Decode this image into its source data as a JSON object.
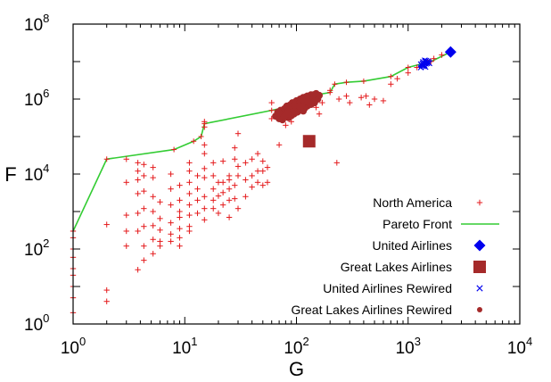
{
  "chart_data": {
    "type": "scatter",
    "xlabel": "G",
    "ylabel": "F",
    "xscale": "log",
    "yscale": "log",
    "xlim": [
      1,
      10000
    ],
    "ylim": [
      1,
      100000000
    ],
    "x_ticks": [
      {
        "base": "10",
        "exp": "0",
        "value": 1
      },
      {
        "base": "10",
        "exp": "1",
        "value": 10
      },
      {
        "base": "10",
        "exp": "2",
        "value": 100
      },
      {
        "base": "10",
        "exp": "3",
        "value": 1000
      },
      {
        "base": "10",
        "exp": "4",
        "value": 10000
      }
    ],
    "y_ticks": [
      {
        "base": "10",
        "exp": "0",
        "value": 1
      },
      {
        "base": "10",
        "exp": "2",
        "value": 100
      },
      {
        "base": "10",
        "exp": "4",
        "value": 10000
      },
      {
        "base": "10",
        "exp": "6",
        "value": 1000000
      },
      {
        "base": "10",
        "exp": "8",
        "value": 100000000
      }
    ],
    "grid": false,
    "legend_position": "bottom-right",
    "series": [
      {
        "name": "North America",
        "marker": "plus",
        "color": "#e41a1c",
        "points": [
          [
            1,
            300
          ],
          [
            1,
            200
          ],
          [
            1,
            100
          ],
          [
            1,
            60
          ],
          [
            1,
            30
          ],
          [
            1,
            20
          ],
          [
            1,
            10
          ],
          [
            1,
            5
          ],
          [
            1,
            2
          ],
          [
            2,
            450
          ],
          [
            2,
            8
          ],
          [
            2,
            4
          ],
          [
            3,
            25000
          ],
          [
            3,
            6000
          ],
          [
            3,
            800
          ],
          [
            3,
            300
          ],
          [
            3,
            120
          ],
          [
            3.8,
            20000
          ],
          [
            3.8,
            12000
          ],
          [
            3.8,
            7000
          ],
          [
            3.8,
            3000
          ],
          [
            3.8,
            900
          ],
          [
            3.8,
            300
          ],
          [
            3.8,
            28
          ],
          [
            4.3,
            18000
          ],
          [
            4.3,
            9000
          ],
          [
            4.3,
            3500
          ],
          [
            4.3,
            1200
          ],
          [
            4.3,
            400
          ],
          [
            4.3,
            120
          ],
          [
            4.3,
            50
          ],
          [
            5.2,
            15000
          ],
          [
            5.2,
            8000
          ],
          [
            5.2,
            2500
          ],
          [
            5.2,
            1000
          ],
          [
            5.2,
            420
          ],
          [
            5.2,
            180
          ],
          [
            5.2,
            75
          ],
          [
            6,
            1800
          ],
          [
            6,
            650
          ],
          [
            6,
            320
          ],
          [
            6,
            160
          ],
          [
            6,
            120
          ],
          [
            7.5,
            10000
          ],
          [
            7.5,
            4000
          ],
          [
            7.5,
            1500
          ],
          [
            7.5,
            500
          ],
          [
            7.5,
            250
          ],
          [
            7.5,
            160
          ],
          [
            9,
            5000
          ],
          [
            9,
            2000
          ],
          [
            9,
            1000
          ],
          [
            9,
            700
          ],
          [
            9,
            350
          ],
          [
            9,
            200
          ],
          [
            9,
            120
          ],
          [
            11,
            20000
          ],
          [
            11,
            12000
          ],
          [
            11,
            6000
          ],
          [
            11,
            3000
          ],
          [
            11,
            1500
          ],
          [
            11,
            800
          ],
          [
            11,
            400
          ],
          [
            11,
            300
          ],
          [
            13,
            9000
          ],
          [
            13,
            4000
          ],
          [
            13,
            2000
          ],
          [
            13,
            900
          ],
          [
            15,
            250000
          ],
          [
            15,
            180000
          ],
          [
            15,
            60000
          ],
          [
            15,
            35000
          ],
          [
            15,
            14000
          ],
          [
            15,
            8000
          ],
          [
            15,
            2500
          ],
          [
            15,
            1200
          ],
          [
            15,
            600
          ],
          [
            18,
            20000
          ],
          [
            18,
            9000
          ],
          [
            18,
            4000
          ],
          [
            18,
            2000
          ],
          [
            18,
            1200
          ],
          [
            20,
            6000
          ],
          [
            20,
            2600
          ],
          [
            20,
            900
          ],
          [
            22,
            22000
          ],
          [
            22,
            6000
          ],
          [
            22,
            3200
          ],
          [
            22,
            1500
          ],
          [
            25,
            9000
          ],
          [
            25,
            7000
          ],
          [
            25,
            4000
          ],
          [
            25,
            2000
          ],
          [
            25,
            700
          ],
          [
            28,
            50000
          ],
          [
            28,
            25000
          ],
          [
            28,
            5000
          ],
          [
            28,
            2200
          ],
          [
            30,
            120000
          ],
          [
            30,
            16000
          ],
          [
            30,
            9000
          ],
          [
            30,
            1200
          ],
          [
            35,
            20000
          ],
          [
            35,
            7000
          ],
          [
            35,
            2500
          ],
          [
            40,
            25000
          ],
          [
            40,
            9000
          ],
          [
            40,
            4500
          ],
          [
            45,
            35000
          ],
          [
            45,
            12000
          ],
          [
            45,
            6000
          ],
          [
            50,
            22000
          ],
          [
            50,
            12000
          ],
          [
            50,
            5000
          ],
          [
            55,
            15000
          ],
          [
            55,
            6000
          ],
          [
            60,
            800000
          ],
          [
            60,
            300000
          ],
          [
            70,
            400000
          ],
          [
            70,
            300000
          ],
          [
            70,
            60000
          ],
          [
            80,
            200000
          ],
          [
            80,
            500000
          ],
          [
            90,
            250000
          ],
          [
            90,
            600000
          ],
          [
            150,
            1000000
          ],
          [
            150,
            600000
          ],
          [
            160,
            400000
          ],
          [
            170,
            800000
          ],
          [
            200,
            1700000
          ],
          [
            230,
            20000
          ],
          [
            240,
            1000000
          ],
          [
            280,
            1200000
          ],
          [
            300,
            800000
          ],
          [
            380,
            1100000
          ],
          [
            420,
            1200000
          ],
          [
            450,
            700000
          ],
          [
            500,
            1000000
          ],
          [
            600,
            900000
          ],
          [
            700,
            2500000
          ],
          [
            800,
            3500000
          ],
          [
            1000,
            5000000
          ],
          [
            1200,
            7000000
          ],
          [
            1500,
            10000000
          ],
          [
            1700,
            12000000
          ],
          [
            2000,
            15000000
          ],
          [
            2400,
            18000000
          ]
        ]
      },
      {
        "name": "Pareto Front",
        "marker": "line",
        "color": "#33cc33",
        "points": [
          [
            1,
            300
          ],
          [
            2,
            25000
          ],
          [
            8,
            45000
          ],
          [
            12,
            75000
          ],
          [
            14,
            100000
          ],
          [
            15,
            220000
          ],
          [
            60,
            500000
          ],
          [
            80,
            600000
          ],
          [
            150,
            1300000
          ],
          [
            200,
            1500000
          ],
          [
            220,
            2500000
          ],
          [
            280,
            2800000
          ],
          [
            400,
            3000000
          ],
          [
            700,
            4000000
          ],
          [
            1000,
            7000000
          ],
          [
            1600,
            10000000
          ],
          [
            2400,
            18000000
          ]
        ]
      },
      {
        "name": "United Airlines",
        "marker": "diamond",
        "color": "#0000ee",
        "points": [
          [
            2400,
            18000000
          ]
        ]
      },
      {
        "name": "Great Lakes Airlines",
        "marker": "square",
        "color": "#a52a2a",
        "points": [
          [
            130,
            75000
          ]
        ]
      },
      {
        "name": "United Airlines Rewired",
        "marker": "cross",
        "color": "#0000ee",
        "points": [
          [
            1300,
            7000000
          ],
          [
            1330,
            7800000
          ],
          [
            1360,
            8500000
          ],
          [
            1390,
            9200000
          ],
          [
            1420,
            10000000
          ],
          [
            1450,
            10500000
          ],
          [
            1480,
            9000000
          ],
          [
            1520,
            9500000
          ],
          [
            1350,
            9000000
          ],
          [
            1400,
            8000000
          ],
          [
            1380,
            7500000
          ],
          [
            1440,
            8800000
          ],
          [
            1500,
            10200000
          ],
          [
            1320,
            8200000
          ],
          [
            1470,
            9600000
          ],
          [
            1410,
            10800000
          ],
          [
            1360,
            9800000
          ],
          [
            1550,
            9000000
          ],
          [
            1300,
            8500000
          ],
          [
            1430,
            7200000
          ]
        ]
      },
      {
        "name": "Great Lakes Airlines Rewired",
        "marker": "dot",
        "color": "#a52a2a",
        "points": [
          [
            65,
            350000
          ],
          [
            68,
            450000
          ],
          [
            70,
            300000
          ],
          [
            72,
            500000
          ],
          [
            75,
            380000
          ],
          [
            78,
            550000
          ],
          [
            80,
            420000
          ],
          [
            82,
            650000
          ],
          [
            85,
            480000
          ],
          [
            88,
            700000
          ],
          [
            90,
            360000
          ],
          [
            92,
            800000
          ],
          [
            95,
            520000
          ],
          [
            98,
            600000
          ],
          [
            100,
            900000
          ],
          [
            102,
            450000
          ],
          [
            105,
            750000
          ],
          [
            108,
            1000000
          ],
          [
            110,
            620000
          ],
          [
            112,
            850000
          ],
          [
            115,
            1100000
          ],
          [
            118,
            700000
          ],
          [
            120,
            950000
          ],
          [
            125,
            1200000
          ],
          [
            128,
            800000
          ],
          [
            130,
            1050000
          ],
          [
            135,
            1300000
          ],
          [
            140,
            900000
          ],
          [
            145,
            1150000
          ],
          [
            150,
            1400000
          ],
          [
            155,
            1000000
          ],
          [
            160,
            1250000
          ],
          [
            75,
            280000
          ],
          [
            85,
            320000
          ],
          [
            95,
            400000
          ],
          [
            105,
            550000
          ],
          [
            115,
            480000
          ],
          [
            125,
            650000
          ],
          [
            135,
            720000
          ],
          [
            145,
            800000
          ],
          [
            70,
            420000
          ],
          [
            80,
            380000
          ],
          [
            90,
            600000
          ],
          [
            100,
            700000
          ],
          [
            110,
            780000
          ],
          [
            120,
            680000
          ],
          [
            130,
            900000
          ],
          [
            140,
            1050000
          ],
          [
            150,
            1200000
          ],
          [
            88,
            520000
          ],
          [
            98,
            460000
          ],
          [
            108,
            820000
          ],
          [
            118,
            560000
          ],
          [
            128,
            1000000
          ],
          [
            138,
            1150000
          ],
          [
            148,
            950000
          ],
          [
            92,
            620000
          ],
          [
            102,
            580000
          ],
          [
            112,
            680000
          ],
          [
            122,
            1150000
          ],
          [
            132,
            780000
          ],
          [
            142,
            1300000
          ],
          [
            78,
            340000
          ],
          [
            84,
            410000
          ],
          [
            96,
            680000
          ],
          [
            106,
            640000
          ],
          [
            116,
            920000
          ],
          [
            126,
            860000
          ]
        ]
      }
    ]
  }
}
